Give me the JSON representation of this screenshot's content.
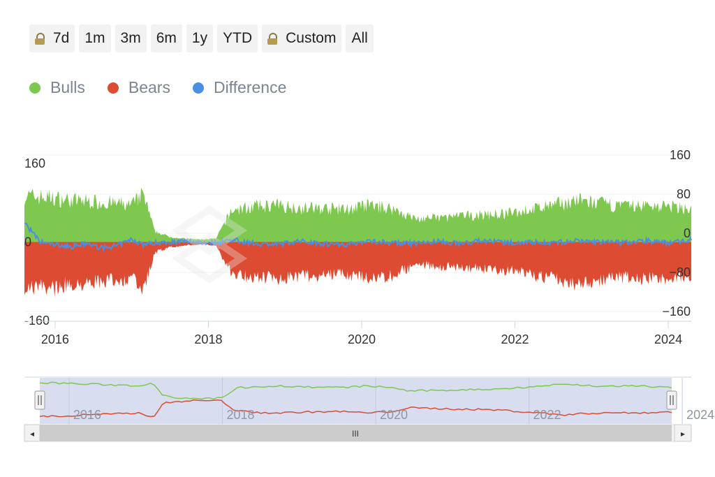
{
  "range_selector": {
    "buttons": [
      {
        "label": "7d",
        "locked": true
      },
      {
        "label": "1m",
        "locked": false
      },
      {
        "label": "3m",
        "locked": false
      },
      {
        "label": "6m",
        "locked": false
      },
      {
        "label": "1y",
        "locked": false
      },
      {
        "label": "YTD",
        "locked": false
      },
      {
        "label": "Custom",
        "locked": true
      },
      {
        "label": "All",
        "locked": false
      }
    ]
  },
  "navigator": {
    "scrollbar_grip": "III",
    "left_arrow": "◂",
    "right_arrow": "▸",
    "handle_grip": "||"
  },
  "chart_data": {
    "type": "area",
    "x_ticks": [
      "2016",
      "2018",
      "2020",
      "2022",
      "2024"
    ],
    "left_axis": {
      "ticks": [
        "160",
        "0",
        "-160"
      ],
      "ylim": [
        -160,
        160
      ]
    },
    "right_axis": {
      "ticks": [
        "160",
        "80",
        "0",
        "-80",
        "-160"
      ],
      "ylim": [
        -160,
        160
      ]
    },
    "legend": [
      {
        "name": "Bulls",
        "color": "#7ec850"
      },
      {
        "name": "Bears",
        "color": "#dd4b32"
      },
      {
        "name": "Difference",
        "color": "#4a8fe0"
      }
    ],
    "x": [
      2015.6,
      2015.8,
      2016.0,
      2016.2,
      2016.4,
      2016.6,
      2016.8,
      2017.0,
      2017.15,
      2017.3,
      2017.5,
      2017.7,
      2017.9,
      2018.1,
      2018.3,
      2018.6,
      2018.9,
      2019.2,
      2019.5,
      2019.8,
      2020.1,
      2020.4,
      2020.7,
      2021.0,
      2021.3,
      2021.6,
      2021.9,
      2022.2,
      2022.5,
      2022.8,
      2023.1,
      2023.4,
      2023.7,
      2024.0,
      2024.3
    ],
    "series": [
      {
        "name": "Bulls",
        "values": [
          110,
          108,
          105,
          100,
          98,
          95,
          92,
          88,
          115,
          25,
          12,
          8,
          6,
          8,
          75,
          85,
          88,
          82,
          80,
          78,
          88,
          80,
          55,
          58,
          62,
          65,
          68,
          78,
          88,
          100,
          92,
          85,
          88,
          85,
          80
        ]
      },
      {
        "name": "Bears",
        "values": [
          -110,
          -108,
          -110,
          -100,
          -98,
          -95,
          -92,
          -88,
          -120,
          -25,
          -12,
          -8,
          -6,
          -8,
          -75,
          -85,
          -88,
          -82,
          -80,
          -78,
          -88,
          -80,
          -55,
          -58,
          -62,
          -65,
          -68,
          -78,
          -88,
          -100,
          -92,
          -85,
          -88,
          -85,
          -80
        ]
      },
      {
        "name": "Difference",
        "values": [
          40,
          0,
          -5,
          -10,
          -3,
          -12,
          -8,
          5,
          -5,
          -2,
          0,
          1,
          0,
          -2,
          5,
          -3,
          -5,
          2,
          -3,
          -5,
          2,
          -2,
          -3,
          1,
          -3,
          3,
          -2,
          0,
          -2,
          2,
          0,
          -2,
          3,
          -2,
          5
        ]
      }
    ]
  }
}
